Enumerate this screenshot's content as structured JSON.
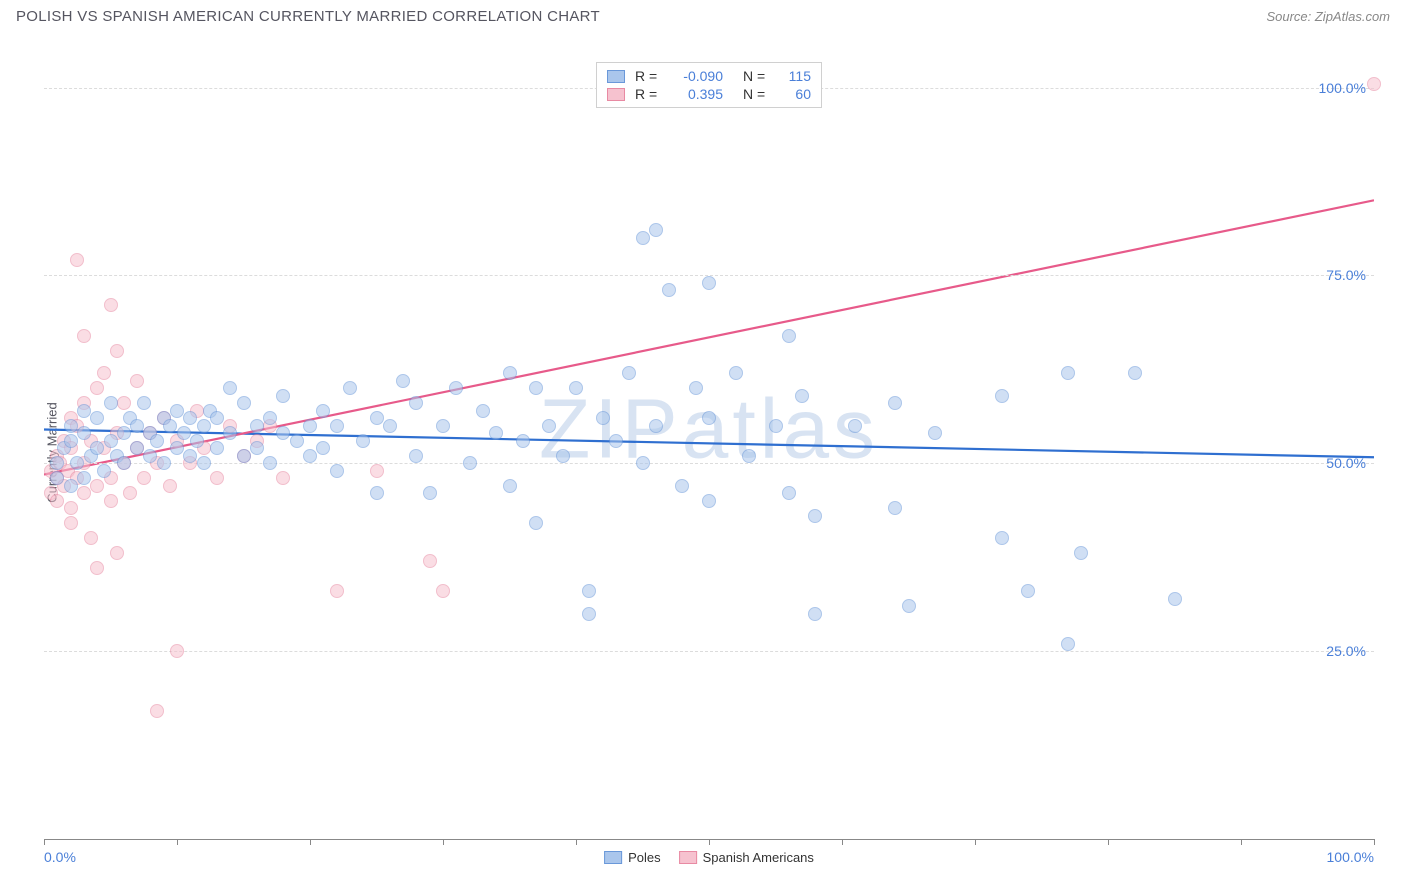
{
  "header": {
    "title": "POLISH VS SPANISH AMERICAN CURRENTLY MARRIED CORRELATION CHART",
    "source": "Source: ZipAtlas.com"
  },
  "chart": {
    "type": "scatter",
    "ylabel": "Currently Married",
    "watermark": "ZIPatlas",
    "xlim": [
      0,
      100
    ],
    "ylim": [
      0,
      105
    ],
    "xtick_positions": [
      0,
      10,
      20,
      30,
      40,
      50,
      60,
      70,
      80,
      90,
      100
    ],
    "xaxis_labels": {
      "left": "0.0%",
      "right": "100.0%"
    },
    "ytick_positions": [
      25,
      50,
      75,
      100
    ],
    "ytick_labels": [
      "25.0%",
      "50.0%",
      "75.0%",
      "100.0%"
    ],
    "grid_color": "#dcdcdc",
    "background_color": "#ffffff",
    "axis_color": "#888888",
    "marker_radius": 7,
    "marker_opacity": 0.55,
    "series": [
      {
        "name": "Poles",
        "fill": "#aac6ec",
        "stroke": "#6a98d9",
        "trend_color": "#2f6fd0",
        "trend_width": 2.2,
        "trend": {
          "x1": 0,
          "y1": 54.5,
          "x2": 100,
          "y2": 50.8
        },
        "r_label": "R =",
        "r_value": "-0.090",
        "n_label": "N =",
        "n_value": "115",
        "points": [
          [
            1,
            48
          ],
          [
            1,
            50
          ],
          [
            1.5,
            52
          ],
          [
            2,
            47
          ],
          [
            2,
            53
          ],
          [
            2,
            55
          ],
          [
            2.5,
            50
          ],
          [
            3,
            48
          ],
          [
            3,
            57
          ],
          [
            3,
            54
          ],
          [
            3.5,
            51
          ],
          [
            4,
            52
          ],
          [
            4,
            56
          ],
          [
            4.5,
            49
          ],
          [
            5,
            53
          ],
          [
            5,
            58
          ],
          [
            5.5,
            51
          ],
          [
            6,
            54
          ],
          [
            6,
            50
          ],
          [
            6.5,
            56
          ],
          [
            7,
            52
          ],
          [
            7,
            55
          ],
          [
            7.5,
            58
          ],
          [
            8,
            51
          ],
          [
            8,
            54
          ],
          [
            8.5,
            53
          ],
          [
            9,
            56
          ],
          [
            9,
            50
          ],
          [
            9.5,
            55
          ],
          [
            10,
            52
          ],
          [
            10,
            57
          ],
          [
            10.5,
            54
          ],
          [
            11,
            51
          ],
          [
            11,
            56
          ],
          [
            11.5,
            53
          ],
          [
            12,
            55
          ],
          [
            12,
            50
          ],
          [
            12.5,
            57
          ],
          [
            13,
            52
          ],
          [
            13,
            56
          ],
          [
            14,
            60
          ],
          [
            14,
            54
          ],
          [
            15,
            51
          ],
          [
            15,
            58
          ],
          [
            16,
            55
          ],
          [
            16,
            52
          ],
          [
            17,
            56
          ],
          [
            17,
            50
          ],
          [
            18,
            54
          ],
          [
            18,
            59
          ],
          [
            19,
            53
          ],
          [
            20,
            55
          ],
          [
            20,
            51
          ],
          [
            21,
            52
          ],
          [
            21,
            57
          ],
          [
            22,
            55
          ],
          [
            22,
            49
          ],
          [
            23,
            60
          ],
          [
            24,
            53
          ],
          [
            25,
            56
          ],
          [
            25,
            46
          ],
          [
            26,
            55
          ],
          [
            27,
            61
          ],
          [
            28,
            51
          ],
          [
            28,
            58
          ],
          [
            29,
            46
          ],
          [
            30,
            55
          ],
          [
            31,
            60
          ],
          [
            32,
            50
          ],
          [
            33,
            57
          ],
          [
            34,
            54
          ],
          [
            35,
            62
          ],
          [
            35,
            47
          ],
          [
            36,
            53
          ],
          [
            37,
            60
          ],
          [
            37,
            42
          ],
          [
            38,
            55
          ],
          [
            39,
            51
          ],
          [
            40,
            60
          ],
          [
            41,
            33
          ],
          [
            41,
            30
          ],
          [
            42,
            56
          ],
          [
            43,
            53
          ],
          [
            44,
            62
          ],
          [
            45,
            50
          ],
          [
            45,
            80
          ],
          [
            46,
            55
          ],
          [
            46,
            81
          ],
          [
            47,
            73
          ],
          [
            48,
            47
          ],
          [
            49,
            60
          ],
          [
            50,
            45
          ],
          [
            50,
            74
          ],
          [
            50,
            56
          ],
          [
            52,
            62
          ],
          [
            53,
            51
          ],
          [
            55,
            55
          ],
          [
            56,
            67
          ],
          [
            56,
            46
          ],
          [
            57,
            59
          ],
          [
            58,
            43
          ],
          [
            58,
            30
          ],
          [
            61,
            55
          ],
          [
            64,
            58
          ],
          [
            64,
            44
          ],
          [
            65,
            31
          ],
          [
            67,
            54
          ],
          [
            72,
            59
          ],
          [
            72,
            40
          ],
          [
            74,
            33
          ],
          [
            77,
            62
          ],
          [
            77,
            26
          ],
          [
            78,
            38
          ],
          [
            82,
            62
          ],
          [
            85,
            32
          ]
        ]
      },
      {
        "name": "Spanish Americans",
        "fill": "#f6c2cf",
        "stroke": "#e88aa3",
        "trend_color": "#e75a8a",
        "trend_width": 2.2,
        "trend": {
          "x1": 0,
          "y1": 48.5,
          "x2": 100,
          "y2": 85
        },
        "r_label": "R =",
        "r_value": "0.395",
        "n_label": "N =",
        "n_value": "60",
        "points": [
          [
            0.5,
            46
          ],
          [
            0.5,
            49
          ],
          [
            1,
            45
          ],
          [
            1,
            48
          ],
          [
            1,
            51
          ],
          [
            1.2,
            50
          ],
          [
            1.5,
            47
          ],
          [
            1.5,
            53
          ],
          [
            1.8,
            49
          ],
          [
            2,
            44
          ],
          [
            2,
            52
          ],
          [
            2,
            56
          ],
          [
            2,
            42
          ],
          [
            2.5,
            48
          ],
          [
            2.5,
            55
          ],
          [
            2.5,
            77
          ],
          [
            3,
            46
          ],
          [
            3,
            50
          ],
          [
            3,
            58
          ],
          [
            3,
            67
          ],
          [
            3.5,
            40
          ],
          [
            3.5,
            53
          ],
          [
            4,
            47
          ],
          [
            4,
            60
          ],
          [
            4,
            36
          ],
          [
            4.5,
            52
          ],
          [
            4.5,
            62
          ],
          [
            5,
            48
          ],
          [
            5,
            45
          ],
          [
            5,
            71
          ],
          [
            5.5,
            54
          ],
          [
            5.5,
            38
          ],
          [
            5.5,
            65
          ],
          [
            6,
            50
          ],
          [
            6,
            58
          ],
          [
            6.5,
            46
          ],
          [
            7,
            52
          ],
          [
            7,
            61
          ],
          [
            7.5,
            48
          ],
          [
            8,
            54
          ],
          [
            8.5,
            50
          ],
          [
            8.5,
            17
          ],
          [
            9,
            56
          ],
          [
            9.5,
            47
          ],
          [
            10,
            53
          ],
          [
            10,
            25
          ],
          [
            11,
            50
          ],
          [
            11.5,
            57
          ],
          [
            12,
            52
          ],
          [
            13,
            48
          ],
          [
            14,
            55
          ],
          [
            15,
            51
          ],
          [
            16,
            53
          ],
          [
            17,
            55
          ],
          [
            18,
            48
          ],
          [
            22,
            33
          ],
          [
            25,
            49
          ],
          [
            29,
            37
          ],
          [
            30,
            33
          ],
          [
            100,
            100.5
          ]
        ]
      }
    ],
    "legend_bottom": [
      {
        "label": "Poles",
        "fill": "#aac6ec",
        "stroke": "#6a98d9"
      },
      {
        "label": "Spanish Americans",
        "fill": "#f6c2cf",
        "stroke": "#e88aa3"
      }
    ]
  }
}
